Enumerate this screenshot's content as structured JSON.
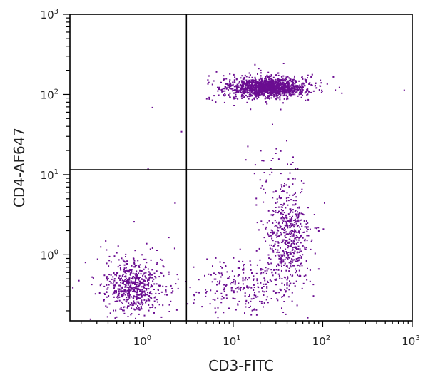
{
  "chart_data": {
    "type": "scatter",
    "xlabel": "CD3-FITC",
    "ylabel": "CD4-AF647",
    "xscale": "log",
    "yscale": "log",
    "xlim": [
      0.15,
      1000
    ],
    "ylim": [
      0.15,
      1000
    ],
    "x_ticks": [
      {
        "value": 1,
        "base": "10",
        "exp": "0"
      },
      {
        "value": 10,
        "base": "10",
        "exp": "1"
      },
      {
        "value": 100,
        "base": "10",
        "exp": "2"
      },
      {
        "value": 1000,
        "base": "10",
        "exp": "3"
      }
    ],
    "y_ticks": [
      {
        "value": 1,
        "base": "10",
        "exp": "0"
      },
      {
        "value": 10,
        "base": "10",
        "exp": "1"
      },
      {
        "value": 100,
        "base": "10",
        "exp": "2"
      },
      {
        "value": 1000,
        "base": "10",
        "exp": "3"
      }
    ],
    "gates": {
      "x": 3,
      "y": 11.5
    },
    "point_color": "#6a0d91",
    "grid": false,
    "legend": "none",
    "populations": [
      {
        "x_center": 25,
        "y_center": 125,
        "x_spread_log": 0.2,
        "y_spread_log": 0.055,
        "count": 1200
      },
      {
        "x_center": 22,
        "y_center": 125,
        "x_spread_log": 0.32,
        "y_spread_log": 0.09,
        "count": 300
      },
      {
        "x_center": 40,
        "y_center": 1.6,
        "x_spread_log": 0.13,
        "y_spread_log": 0.32,
        "count": 520
      },
      {
        "x_center": 13,
        "y_center": 0.4,
        "x_spread_log": 0.33,
        "y_spread_log": 0.17,
        "count": 260
      },
      {
        "x_center": 0.75,
        "y_center": 0.42,
        "x_spread_log": 0.14,
        "y_spread_log": 0.16,
        "count": 520
      },
      {
        "x_center": 0.8,
        "y_center": 0.5,
        "x_spread_log": 0.3,
        "y_spread_log": 0.28,
        "count": 90
      },
      {
        "x_center": 30,
        "y_center": 12,
        "x_spread_log": 0.15,
        "y_spread_log": 0.22,
        "count": 40
      }
    ],
    "outliers": [
      {
        "x": 9,
        "y": 95
      },
      {
        "x": 2.6,
        "y": 35
      },
      {
        "x": 800,
        "y": 115
      },
      {
        "x": 75,
        "y": 180
      },
      {
        "x": 2.2,
        "y": 4.5
      },
      {
        "x": 1.1,
        "y": 12
      },
      {
        "x": 60,
        "y": 8
      },
      {
        "x": 35,
        "y": 0.15
      },
      {
        "x": 0.25,
        "y": 0.16
      },
      {
        "x": 0.3,
        "y": 0.9
      },
      {
        "x": 5,
        "y": 0.9
      },
      {
        "x": 1.9,
        "y": 0.2
      }
    ]
  }
}
